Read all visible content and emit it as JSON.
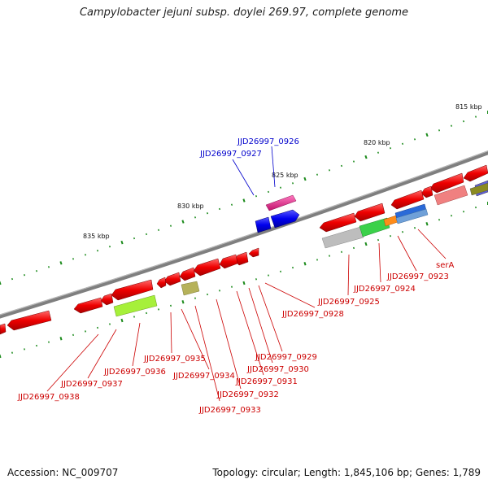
{
  "title": "Campylobacter jejuni subsp. doylei 269.97, complete genome",
  "footer": {
    "accession": "Accession: NC_009707",
    "stats": "Topology: circular; Length: 1,845,106 bp; Genes: 1,789"
  },
  "scale_ticks": [
    "815 kbp",
    "820 kbp",
    "825 kbp",
    "830 kbp",
    "835 kbp"
  ],
  "gene_labels_forward": [
    "JJD26997_0926",
    "JJD26997_0927"
  ],
  "gene_labels_reverse": [
    "serA",
    "JJD26997_0923",
    "JJD26997_0924",
    "JJD26997_0925",
    "JJD26997_0928",
    "JJD26997_0929",
    "JJD26997_0930",
    "JJD26997_0931",
    "JJD26997_0932",
    "JJD26997_0933",
    "JJD26997_0934",
    "JJD26997_0935",
    "JJD26997_0936",
    "JJD26997_0937",
    "JJD26997_0938"
  ],
  "colors": {
    "reverse_label": "#cc0000",
    "forward_label": "#0000cc",
    "backbone": "#808080",
    "tick_marks": "#1a8a1a",
    "reverse_gene": "#ff0000",
    "forward_gene": "#0000ee",
    "forward_gene_alt": "#e0208a"
  }
}
